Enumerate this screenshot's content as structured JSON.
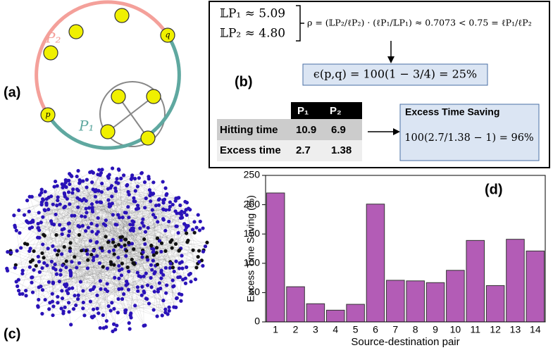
{
  "panel_labels": [
    "(a)",
    "(b)",
    "(c)",
    "(d)"
  ],
  "diagram": {
    "path_labels": [
      "P₂",
      "P₁"
    ],
    "node_labels": [
      "p",
      "q"
    ]
  },
  "formulas": {
    "lp1": "𝕃P₁ ≈ 5.09",
    "lp2": "𝕃P₂ ≈ 4.80",
    "rho": "ρ = (𝕃P₂/ℓP₂) · (ℓP₁/𝕃P₁) ≈ 0.7073 < 0.75 = ℓP₁/ℓP₂",
    "epsilon": "ϵ(p,q) = 100(1 − 3/4) = 25%"
  },
  "table": {
    "header": [
      "P₁",
      "P₂"
    ],
    "rows": [
      [
        "Hitting time",
        "10.9",
        "6.9"
      ],
      [
        "Excess time",
        "2.7",
        "1.38"
      ]
    ]
  },
  "saving_box": {
    "title": "Excess Time Saving",
    "formula": "100(2.7/1.38 − 1) = 96%"
  },
  "chart_data": {
    "type": "bar",
    "categories": [
      "1",
      "2",
      "3",
      "4",
      "5",
      "6",
      "7",
      "8",
      "9",
      "10",
      "11",
      "12",
      "13",
      "14"
    ],
    "values": [
      220,
      60,
      31,
      20,
      30,
      201,
      71,
      70,
      67,
      88,
      139,
      62,
      141,
      121
    ],
    "color": "#b35cb6",
    "ylabel": "Excess Time Saving (%)",
    "xlabel": "Source-destination pair",
    "ylim": [
      0,
      250
    ],
    "yticks": [
      0,
      50,
      100,
      150,
      200,
      250
    ]
  }
}
